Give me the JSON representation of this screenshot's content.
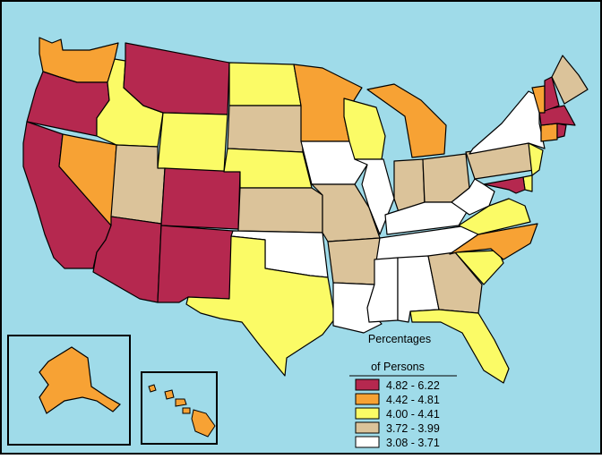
{
  "legend": {
    "title_line1": "Percentages",
    "title_line2": "of Persons",
    "bins": [
      {
        "label": "4.82 - 6.22",
        "color": "#b5284f"
      },
      {
        "label": "4.42 - 4.81",
        "color": "#f7a234"
      },
      {
        "label": "4.00 - 4.41",
        "color": "#fbfb66"
      },
      {
        "label": "3.72 - 3.99",
        "color": "#dbc39a"
      },
      {
        "label": "3.08 - 3.71",
        "color": "#ffffff"
      }
    ]
  },
  "colors": {
    "background": "#9fdbe9",
    "border": "#000000"
  },
  "regions": [
    {
      "name": "Washington",
      "bin": 1
    },
    {
      "name": "Oregon",
      "bin": 0
    },
    {
      "name": "California",
      "bin": 0
    },
    {
      "name": "Nevada",
      "bin": 1
    },
    {
      "name": "Idaho",
      "bin": 2
    },
    {
      "name": "Montana",
      "bin": 0
    },
    {
      "name": "Wyoming",
      "bin": 2
    },
    {
      "name": "Utah",
      "bin": 3
    },
    {
      "name": "Arizona",
      "bin": 0
    },
    {
      "name": "Colorado",
      "bin": 0
    },
    {
      "name": "New Mexico",
      "bin": 0
    },
    {
      "name": "North Dakota",
      "bin": 2
    },
    {
      "name": "South Dakota",
      "bin": 3
    },
    {
      "name": "Nebraska",
      "bin": 2
    },
    {
      "name": "Kansas",
      "bin": 3
    },
    {
      "name": "Oklahoma",
      "bin": 4
    },
    {
      "name": "Texas",
      "bin": 2
    },
    {
      "name": "Minnesota",
      "bin": 1
    },
    {
      "name": "Iowa",
      "bin": 4
    },
    {
      "name": "Missouri",
      "bin": 3
    },
    {
      "name": "Arkansas",
      "bin": 3
    },
    {
      "name": "Louisiana",
      "bin": 4
    },
    {
      "name": "Wisconsin",
      "bin": 2
    },
    {
      "name": "Illinois",
      "bin": 4
    },
    {
      "name": "Michigan",
      "bin": 1
    },
    {
      "name": "Indiana",
      "bin": 3
    },
    {
      "name": "Ohio",
      "bin": 3
    },
    {
      "name": "Kentucky",
      "bin": 4
    },
    {
      "name": "Tennessee",
      "bin": 4
    },
    {
      "name": "Mississippi",
      "bin": 4
    },
    {
      "name": "Alabama",
      "bin": 4
    },
    {
      "name": "Georgia",
      "bin": 3
    },
    {
      "name": "Florida",
      "bin": 2
    },
    {
      "name": "South Carolina",
      "bin": 2
    },
    {
      "name": "North Carolina",
      "bin": 1
    },
    {
      "name": "Virginia",
      "bin": 2
    },
    {
      "name": "West Virginia",
      "bin": 4
    },
    {
      "name": "Pennsylvania",
      "bin": 3
    },
    {
      "name": "New York",
      "bin": 4
    },
    {
      "name": "New Jersey",
      "bin": 2
    },
    {
      "name": "Delaware",
      "bin": 2
    },
    {
      "name": "Maryland",
      "bin": 0
    },
    {
      "name": "Connecticut",
      "bin": 1
    },
    {
      "name": "Rhode Island",
      "bin": 0
    },
    {
      "name": "Massachusetts",
      "bin": 0
    },
    {
      "name": "Vermont",
      "bin": 1
    },
    {
      "name": "New Hampshire",
      "bin": 0
    },
    {
      "name": "Maine",
      "bin": 3
    },
    {
      "name": "Alaska",
      "bin": 1
    },
    {
      "name": "Hawaii",
      "bin": 1
    }
  ]
}
